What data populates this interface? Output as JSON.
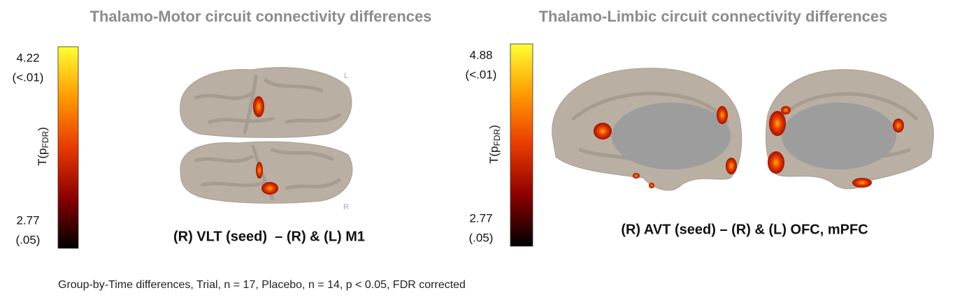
{
  "panels": [
    {
      "title": "Thalamo-Motor circuit connectivity differences",
      "colorbar": {
        "max_value": "4.22",
        "max_p": "(<.01)",
        "min_value": "2.77",
        "min_p": "(.05)",
        "axis_label": "T(p",
        "axis_subscript": "FDR",
        "axis_label_end": ")"
      },
      "orientation": [
        "L",
        "R"
      ],
      "caption": "(R) VLT (seed)  – (R) & (L) M1"
    },
    {
      "title": "Thalamo-Limbic circuit connectivity differences",
      "colorbar": {
        "max_value": "4.88",
        "max_p": "(<.01)",
        "min_value": "2.77",
        "min_p": "(.05)",
        "axis_label": "T(p",
        "axis_subscript": "FDR",
        "axis_label_end": ")"
      },
      "caption": "(R) AVT (seed) – (R) & (L) OFC, mPFC"
    }
  ],
  "footnote": "Group-by-Time differences, Trial, n = 17, Placebo, n = 14, p < 0.05, FDR corrected"
}
